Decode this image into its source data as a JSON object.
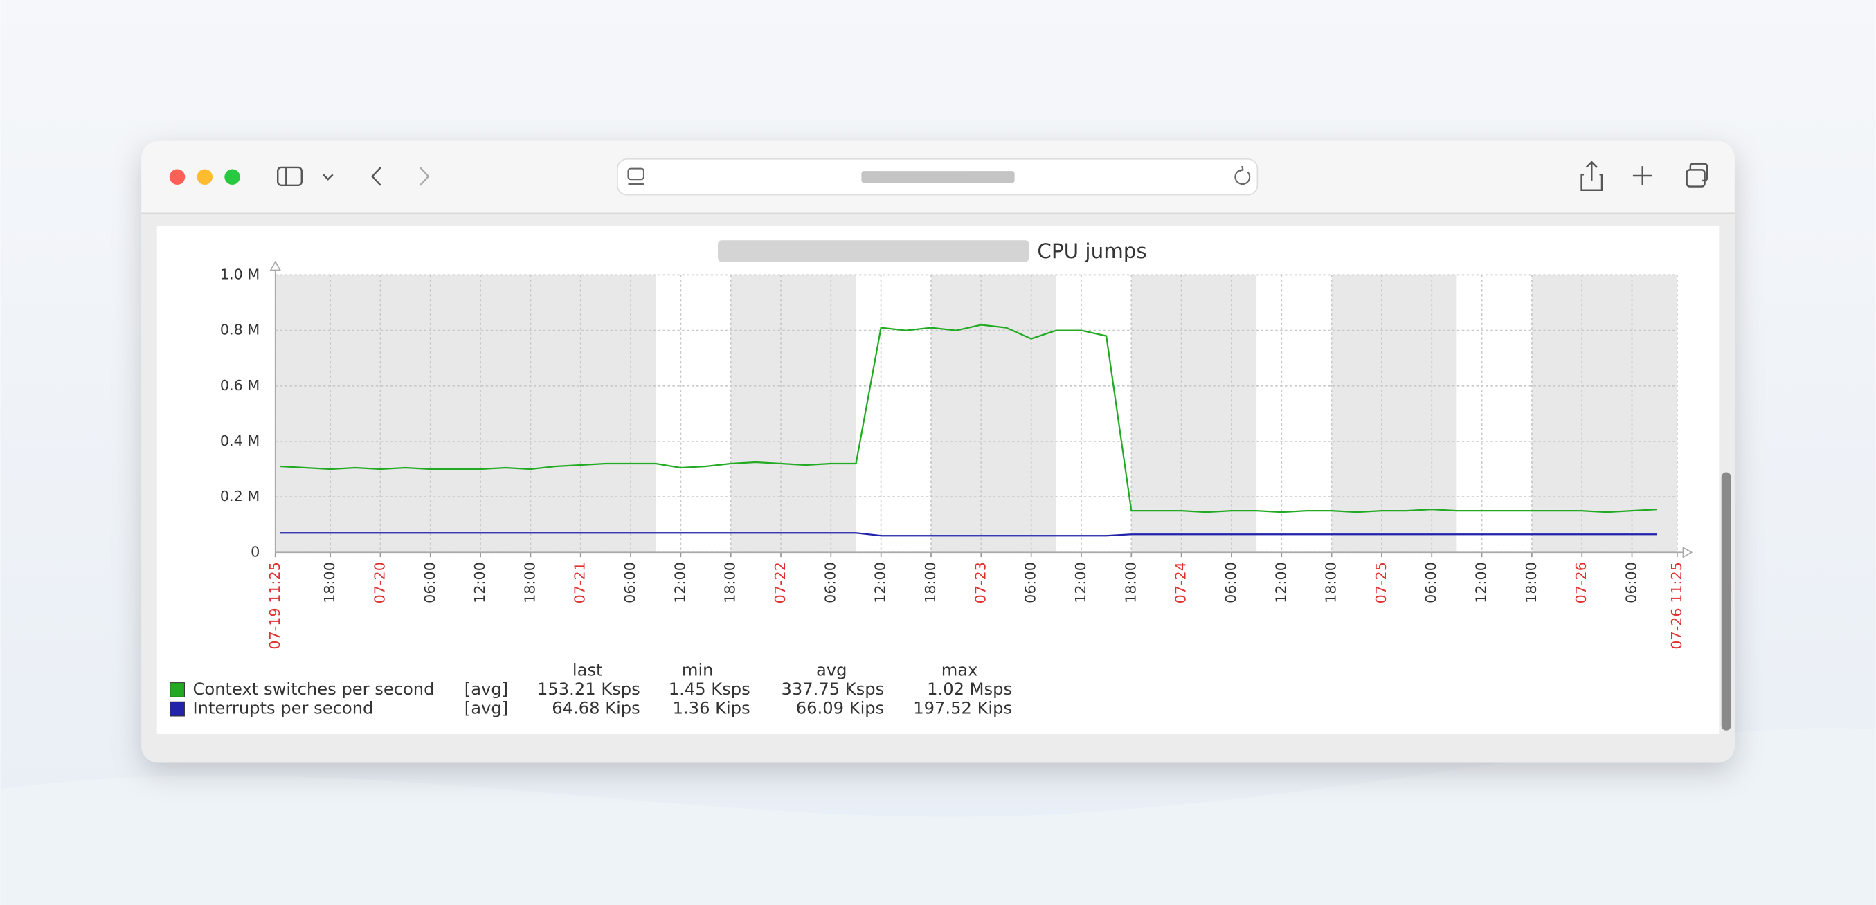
{
  "chart_data": {
    "type": "line",
    "title": "CPU jumps",
    "x": [
      "07-19 12:00",
      "07-19 15:00",
      "07-19 18:00",
      "07-19 21:00",
      "07-20 00:00",
      "07-20 03:00",
      "07-20 06:00",
      "07-20 09:00",
      "07-20 12:00",
      "07-20 15:00",
      "07-20 18:00",
      "07-20 21:00",
      "07-21 00:00",
      "07-21 03:00",
      "07-21 06:00",
      "07-21 09:00",
      "07-21 12:00",
      "07-21 15:00",
      "07-21 18:00",
      "07-21 21:00",
      "07-22 00:00",
      "07-22 03:00",
      "07-22 06:00",
      "07-22 09:00",
      "07-22 12:00",
      "07-22 15:00",
      "07-22 18:00",
      "07-22 21:00",
      "07-23 00:00",
      "07-23 03:00",
      "07-23 06:00",
      "07-23 09:00",
      "07-23 12:00",
      "07-23 15:00",
      "07-23 18:00",
      "07-23 21:00",
      "07-24 00:00",
      "07-24 03:00",
      "07-24 06:00",
      "07-24 09:00",
      "07-24 12:00",
      "07-24 15:00",
      "07-24 18:00",
      "07-24 21:00",
      "07-25 00:00",
      "07-25 03:00",
      "07-25 06:00",
      "07-25 09:00",
      "07-25 12:00",
      "07-25 15:00",
      "07-25 18:00",
      "07-25 21:00",
      "07-26 00:00",
      "07-26 03:00",
      "07-26 06:00",
      "07-26 09:00"
    ],
    "series": [
      {
        "name": "Context switches per second",
        "color": "#22aa22",
        "function": "[avg]",
        "stats": [
          "153.21 Ksps",
          "1.45 Ksps",
          "337.75 Ksps",
          "1.02 Msps"
        ],
        "values": [
          310000,
          305000,
          300000,
          305000,
          300000,
          305000,
          300000,
          300000,
          300000,
          305000,
          300000,
          310000,
          315000,
          320000,
          320000,
          320000,
          305000,
          310000,
          320000,
          325000,
          320000,
          315000,
          320000,
          320000,
          810000,
          800000,
          810000,
          800000,
          820000,
          810000,
          770000,
          800000,
          800000,
          780000,
          150000,
          150000,
          150000,
          145000,
          150000,
          150000,
          145000,
          150000,
          150000,
          145000,
          150000,
          150000,
          155000,
          150000,
          150000,
          150000,
          150000,
          150000,
          150000,
          145000,
          150000,
          155000
        ]
      },
      {
        "name": "Interrupts per second",
        "color": "#2222aa",
        "function": "[avg]",
        "stats": [
          "64.68 Kips",
          "1.36 Kips",
          "66.09 Kips",
          "197.52 Kips"
        ],
        "values": [
          70000,
          70000,
          70000,
          70000,
          70000,
          70000,
          70000,
          70000,
          70000,
          70000,
          70000,
          70000,
          70000,
          70000,
          70000,
          70000,
          70000,
          70000,
          70000,
          70000,
          70000,
          70000,
          70000,
          70000,
          60000,
          60000,
          60000,
          60000,
          60000,
          60000,
          60000,
          60000,
          60000,
          60000,
          65000,
          65000,
          65000,
          65000,
          65000,
          65000,
          65000,
          65000,
          65000,
          65000,
          65000,
          65000,
          65000,
          65000,
          65000,
          65000,
          65000,
          65000,
          65000,
          65000,
          65000,
          65000
        ]
      }
    ],
    "stat_columns": [
      "last",
      "min",
      "avg",
      "max"
    ],
    "xlim": [
      "07-19 11:25",
      "07-26 11:25"
    ],
    "xticks": [
      "07-19 11:25",
      {
        "value": "07-19 18:00",
        "label": "18:00"
      },
      {
        "value": "07-20 00:00",
        "label": "07-20"
      },
      {
        "value": "07-20 06:00",
        "label": "06:00"
      },
      {
        "value": "07-20 12:00",
        "label": "12:00"
      },
      {
        "value": "07-20 18:00",
        "label": "18:00"
      },
      {
        "value": "07-21 00:00",
        "label": "07-21"
      },
      {
        "value": "07-21 06:00",
        "label": "06:00"
      },
      {
        "value": "07-21 12:00",
        "label": "12:00"
      },
      {
        "value": "07-21 18:00",
        "label": "18:00"
      },
      {
        "value": "07-22 00:00",
        "label": "07-22"
      },
      {
        "value": "07-22 06:00",
        "label": "06:00"
      },
      {
        "value": "07-22 12:00",
        "label": "12:00"
      },
      {
        "value": "07-22 18:00",
        "label": "18:00"
      },
      {
        "value": "07-23 00:00",
        "label": "07-23"
      },
      {
        "value": "07-23 06:00",
        "label": "06:00"
      },
      {
        "value": "07-23 12:00",
        "label": "12:00"
      },
      {
        "value": "07-23 18:00",
        "label": "18:00"
      },
      {
        "value": "07-24 00:00",
        "label": "07-24"
      },
      {
        "value": "07-24 06:00",
        "label": "06:00"
      },
      {
        "value": "07-24 12:00",
        "label": "12:00"
      },
      {
        "value": "07-24 18:00",
        "label": "18:00"
      },
      {
        "value": "07-25 00:00",
        "label": "07-25"
      },
      {
        "value": "07-25 06:00",
        "label": "06:00"
      },
      {
        "value": "07-25 12:00",
        "label": "12:00"
      },
      {
        "value": "07-25 18:00",
        "label": "18:00"
      },
      {
        "value": "07-26 00:00",
        "label": "07-26"
      },
      {
        "value": "07-26 06:00",
        "label": "06:00"
      },
      "07-26 11:25"
    ],
    "ylim": [
      0,
      1000000
    ],
    "yticks": [
      0,
      {
        "value": 200000,
        "label": "0.2 M"
      },
      {
        "value": 400000,
        "label": "0.4 M"
      },
      {
        "value": 600000,
        "label": "0.6 M"
      },
      {
        "value": 800000,
        "label": "0.8 M"
      },
      {
        "value": 1000000,
        "label": "1.0 M"
      }
    ],
    "grid": true,
    "shaded_periods": [
      [
        "07-19 11:25",
        "07-21 09:00"
      ],
      [
        "07-21 18:00",
        "07-22 09:00"
      ],
      [
        "07-22 18:00",
        "07-23 09:00"
      ],
      [
        "07-23 18:00",
        "07-24 09:00"
      ],
      [
        "07-24 18:00",
        "07-25 09:00"
      ],
      [
        "07-25 18:00",
        "07-26 11:25"
      ]
    ]
  }
}
